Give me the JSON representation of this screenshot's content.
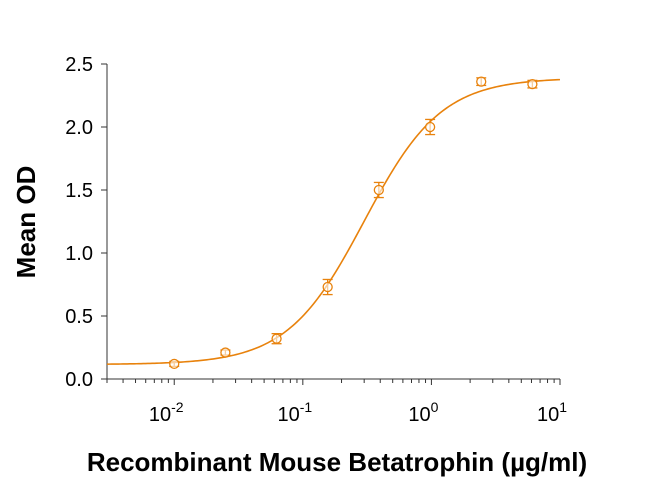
{
  "chart_data": {
    "type": "scatter",
    "title": "",
    "xlabel": "Recombinant Mouse Betatrophin (µg/ml)",
    "ylabel": "Mean OD",
    "xscale": "log",
    "xlim": [
      0.003,
      10
    ],
    "ylim": [
      0,
      2.5
    ],
    "grid": false,
    "legend": "none",
    "color": "#E8820C",
    "yticks": [
      {
        "value": 0.0,
        "label": "0.0"
      },
      {
        "value": 0.5,
        "label": "0.5"
      },
      {
        "value": 1.0,
        "label": "1.0"
      },
      {
        "value": 1.5,
        "label": "1.5"
      },
      {
        "value": 2.0,
        "label": "2.0"
      },
      {
        "value": 2.5,
        "label": "2.5"
      }
    ],
    "xticks": [
      {
        "value": 0.01,
        "base": "10",
        "exp": "-2"
      },
      {
        "value": 0.1,
        "base": "10",
        "exp": "-1"
      },
      {
        "value": 1,
        "base": "10",
        "exp": "0"
      },
      {
        "value": 10,
        "base": "10",
        "exp": "1"
      }
    ],
    "series": [
      {
        "name": "Betatrophin",
        "x": [
          0.01,
          0.025,
          0.0625,
          0.156,
          0.39,
          0.977,
          2.44,
          6.1
        ],
        "y": [
          0.12,
          0.21,
          0.32,
          0.73,
          1.5,
          2.0,
          2.36,
          2.34
        ],
        "err": [
          0.02,
          0.02,
          0.04,
          0.06,
          0.06,
          0.06,
          0.03,
          0.03
        ]
      }
    ],
    "fit": {
      "model": "4PL",
      "bottom": 0.115,
      "top": 2.39,
      "ec50": 0.3,
      "hill": 1.45
    }
  }
}
